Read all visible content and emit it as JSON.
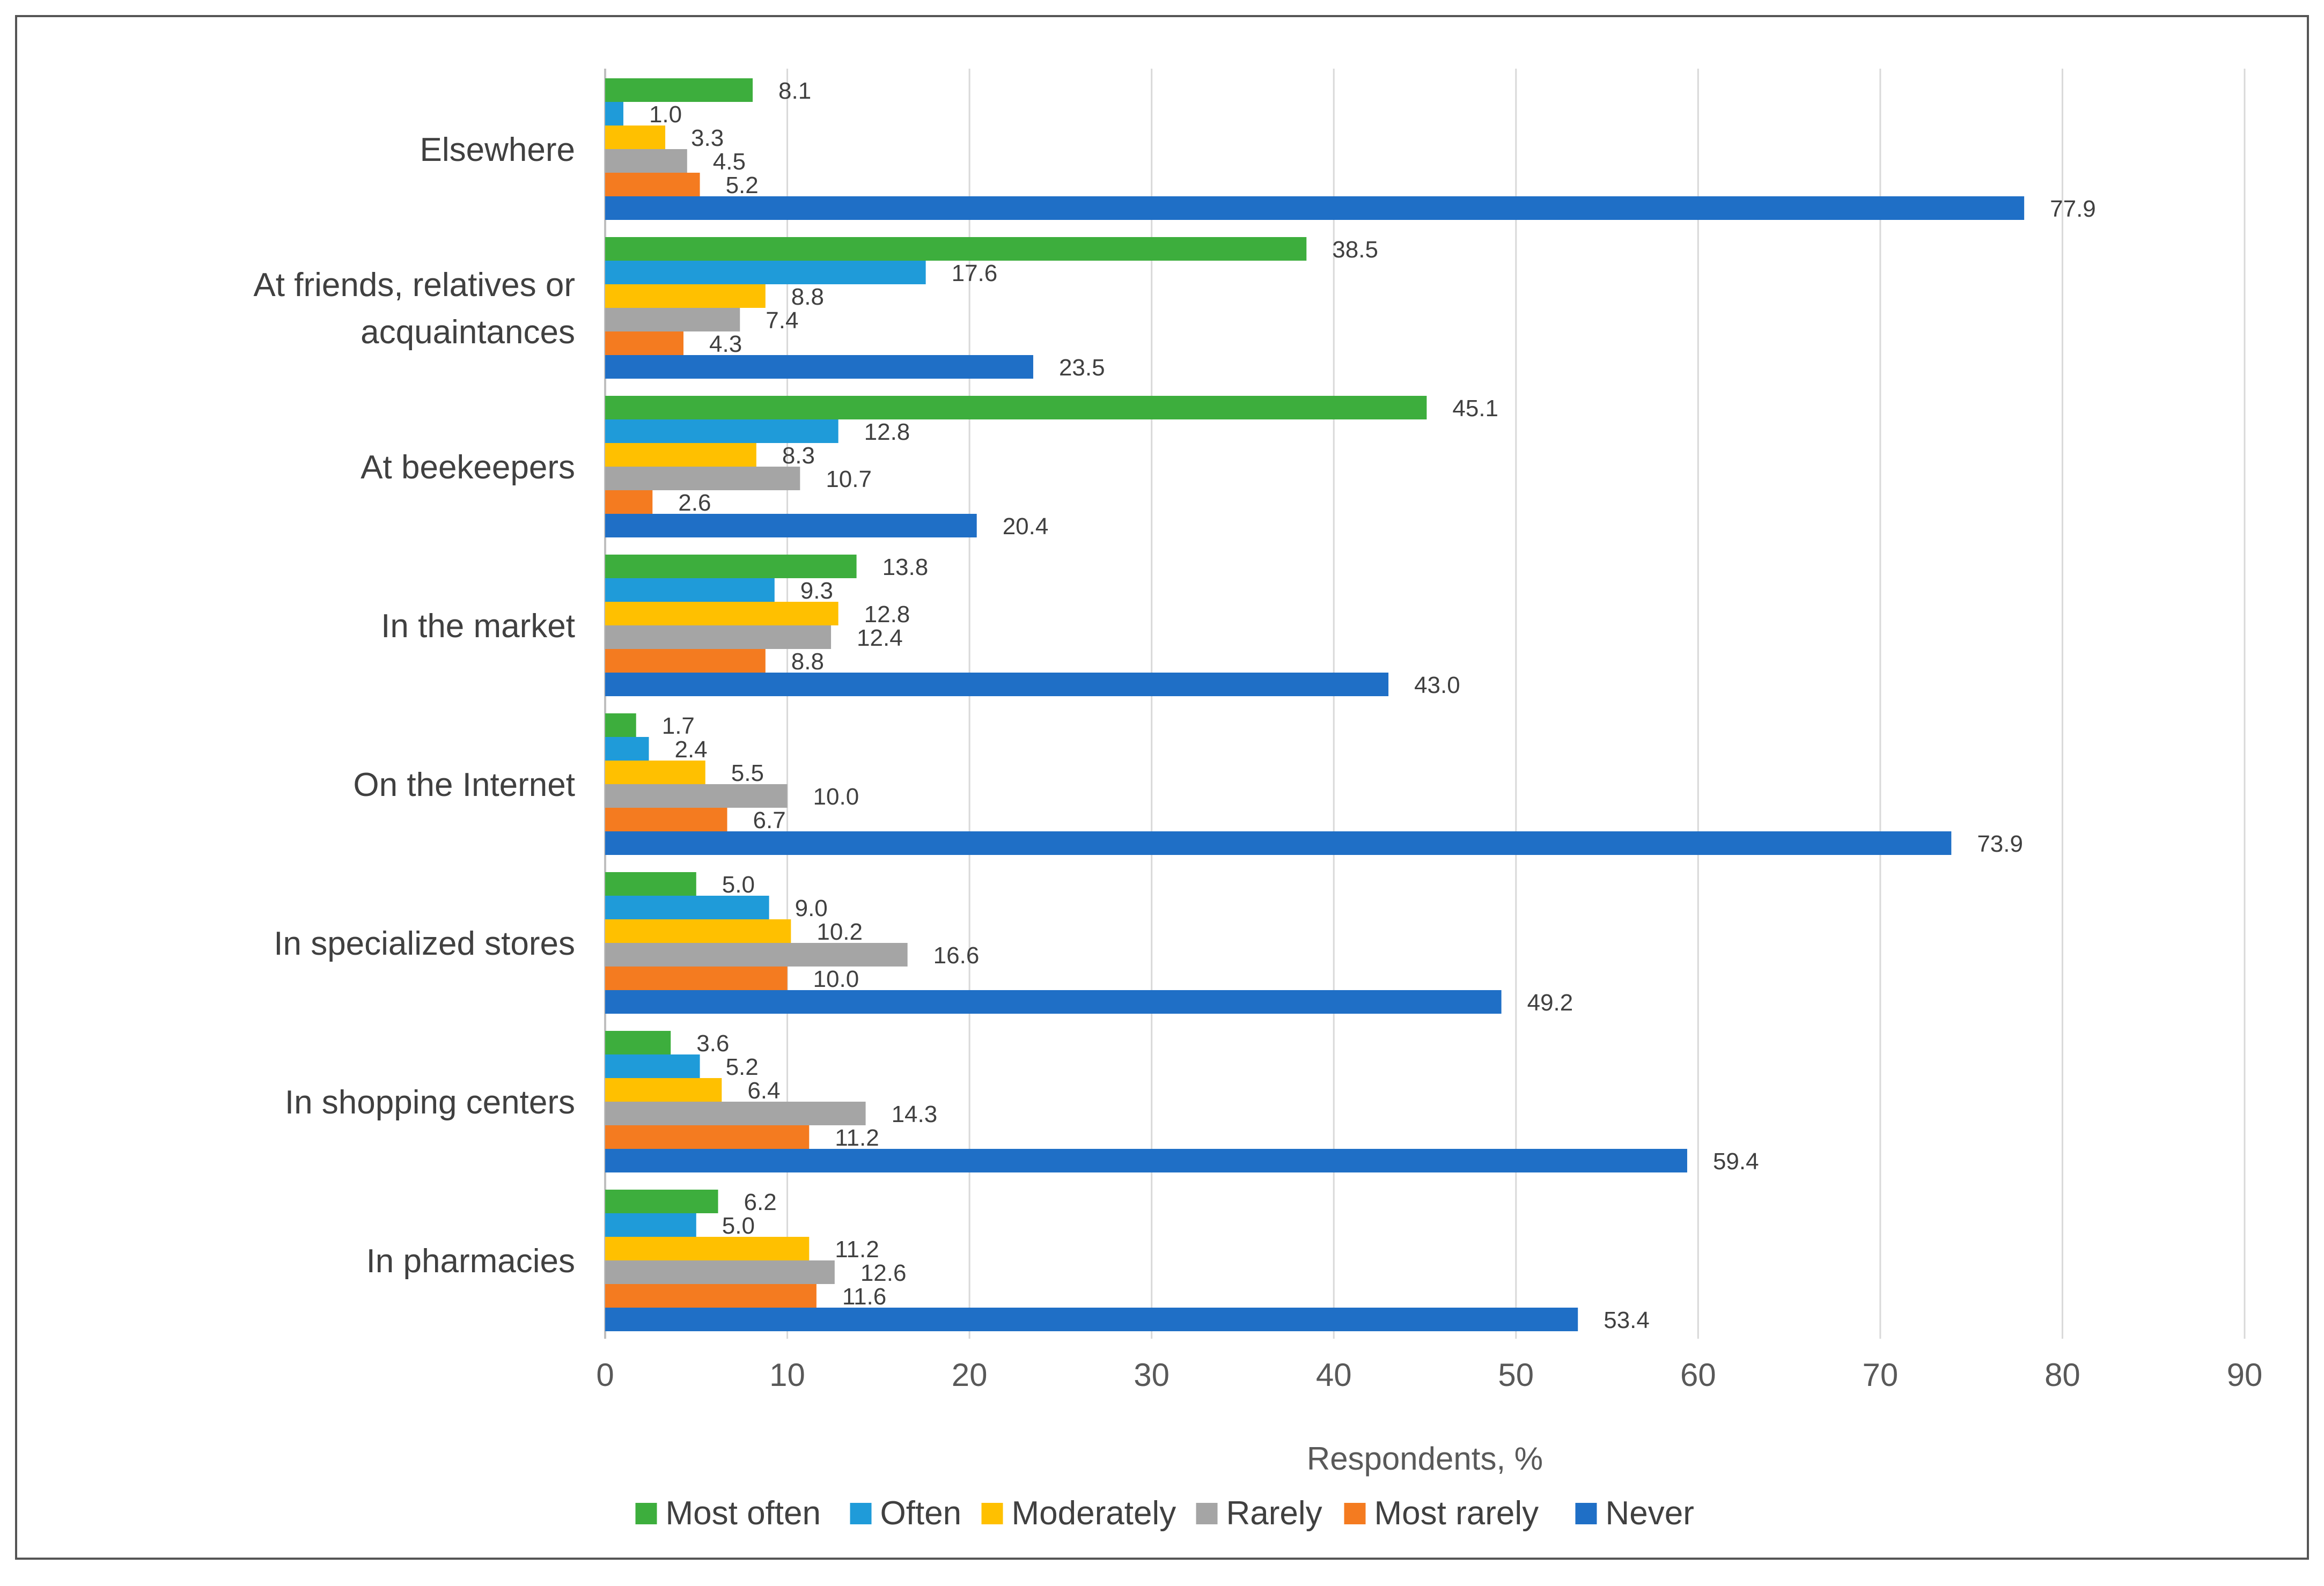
{
  "chart_data": {
    "type": "bar",
    "orientation": "horizontal",
    "title": "",
    "xlabel": "Respondents, %",
    "ylabel": "",
    "xlim": [
      0,
      90
    ],
    "xticks": [
      "0",
      "10",
      "20",
      "30",
      "40",
      "50",
      "60",
      "70",
      "80",
      "90"
    ],
    "grid": "vertical",
    "legend_position": "bottom",
    "categories": [
      [
        "Elsewhere"
      ],
      [
        "At friends, relatives or",
        "acquaintances"
      ],
      [
        "At beekeepers"
      ],
      [
        "In the market"
      ],
      [
        "On the Internet"
      ],
      [
        "In specialized stores"
      ],
      [
        "In shopping centers"
      ],
      [
        "In pharmacies"
      ]
    ],
    "series": [
      {
        "name": "Most often",
        "color": "#3DAE3D",
        "values": [
          8.1,
          38.5,
          45.1,
          13.8,
          1.7,
          5.0,
          3.6,
          6.2
        ],
        "labels": [
          "8.1",
          "38.5",
          "45.1",
          "13.8",
          "1.7",
          "5.0",
          "3.6",
          "6.2"
        ]
      },
      {
        "name": "Often",
        "color": "#1F9BD9",
        "values": [
          1.0,
          17.6,
          12.8,
          9.3,
          2.4,
          9.0,
          5.2,
          5.0
        ],
        "labels": [
          "1.0",
          "17.6",
          "12.8",
          "9.3",
          "2.4",
          "9.0",
          "5.2",
          "5.0"
        ]
      },
      {
        "name": "Moderately",
        "color": "#FFC000",
        "values": [
          3.3,
          8.8,
          8.3,
          12.8,
          5.5,
          10.2,
          6.4,
          11.2
        ],
        "labels": [
          "3.3",
          "8.8",
          "8.3",
          "12.8",
          "5.5",
          "10.2",
          "6.4",
          "11.2"
        ]
      },
      {
        "name": "Rarely",
        "color": "#A5A5A5",
        "values": [
          4.5,
          7.4,
          10.7,
          12.4,
          10.0,
          16.6,
          14.3,
          12.6
        ],
        "labels": [
          "4.5",
          "7.4",
          "10.7",
          "12.4",
          "10.0",
          "16.6",
          "14.3",
          "12.6"
        ]
      },
      {
        "name": "Most rarely",
        "color": "#F47B20",
        "values": [
          5.2,
          4.3,
          2.6,
          8.8,
          6.7,
          10.0,
          11.2,
          11.6
        ],
        "labels": [
          "5.2",
          "4.3",
          "2.6",
          "8.8",
          "6.7",
          "10.0",
          "11.2",
          "11.6"
        ]
      },
      {
        "name": "Never",
        "color": "#1F6FC6",
        "values": [
          77.9,
          23.5,
          20.4,
          43.0,
          73.9,
          49.2,
          59.4,
          53.4
        ],
        "labels": [
          "77.9",
          "23.5",
          "20.4",
          "43.0",
          "73.9",
          "49.2",
          "59.4",
          "53.4"
        ]
      }
    ]
  }
}
